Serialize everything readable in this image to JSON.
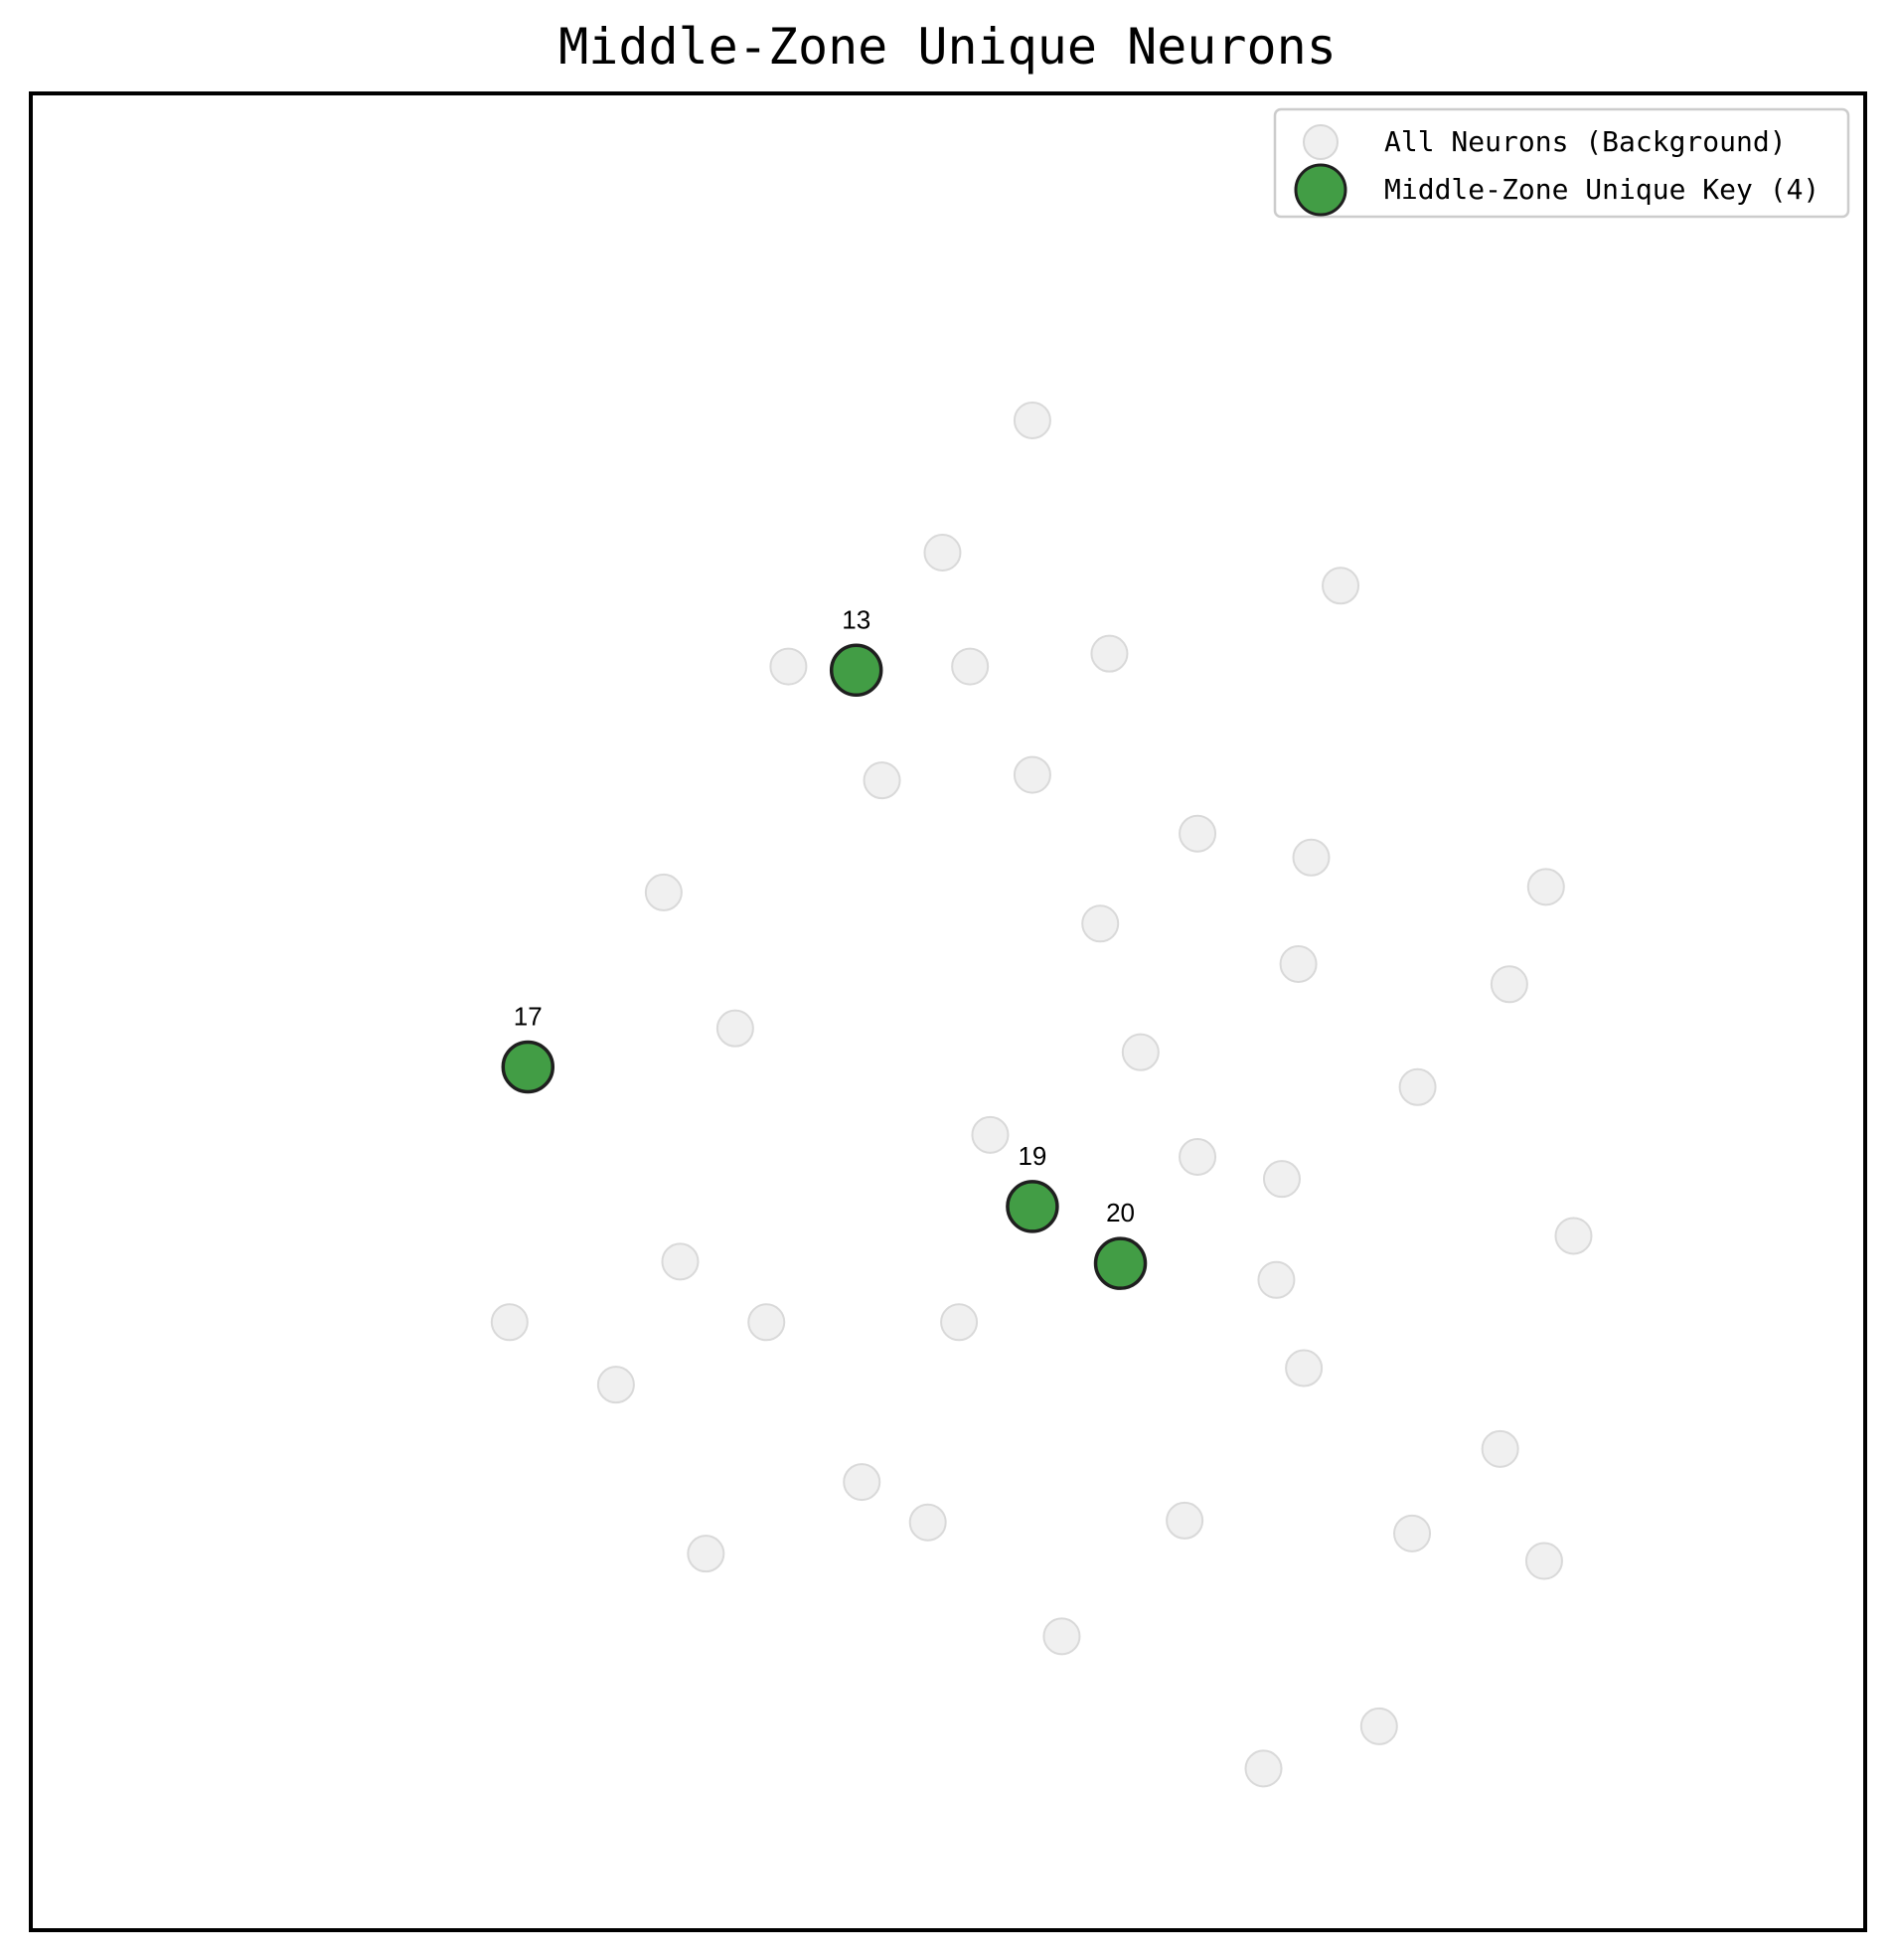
{
  "chart_data": {
    "type": "scatter",
    "title": "Middle-Zone Unique Neurons",
    "xlabel": "",
    "ylabel": "",
    "xlim": [
      0,
      100
    ],
    "ylim": [
      0,
      100
    ],
    "grid": false,
    "axis_ticks": false,
    "legend_position": "top-right",
    "series": [
      {
        "name": "All Neurons (Background)",
        "color": "#e6e6e6",
        "points": [
          {
            "x": 54.6,
            "y": 82.2
          },
          {
            "x": 49.7,
            "y": 75.0
          },
          {
            "x": 71.4,
            "y": 73.2
          },
          {
            "x": 41.3,
            "y": 68.8
          },
          {
            "x": 51.2,
            "y": 68.8
          },
          {
            "x": 58.8,
            "y": 69.5
          },
          {
            "x": 46.4,
            "y": 62.6
          },
          {
            "x": 54.6,
            "y": 62.9
          },
          {
            "x": 63.6,
            "y": 59.7
          },
          {
            "x": 69.8,
            "y": 58.4
          },
          {
            "x": 34.5,
            "y": 56.5
          },
          {
            "x": 58.3,
            "y": 54.8
          },
          {
            "x": 69.1,
            "y": 52.6
          },
          {
            "x": 82.6,
            "y": 56.8
          },
          {
            "x": 80.6,
            "y": 51.5
          },
          {
            "x": 38.4,
            "y": 49.1
          },
          {
            "x": 60.5,
            "y": 47.8
          },
          {
            "x": 75.6,
            "y": 45.9
          },
          {
            "x": 52.3,
            "y": 43.3
          },
          {
            "x": 63.6,
            "y": 42.1
          },
          {
            "x": 68.2,
            "y": 40.9
          },
          {
            "x": 84.1,
            "y": 37.8
          },
          {
            "x": 35.4,
            "y": 36.4
          },
          {
            "x": 26.1,
            "y": 33.1
          },
          {
            "x": 40.1,
            "y": 33.1
          },
          {
            "x": 50.6,
            "y": 33.1
          },
          {
            "x": 67.9,
            "y": 35.4
          },
          {
            "x": 69.4,
            "y": 30.6
          },
          {
            "x": 31.9,
            "y": 29.7
          },
          {
            "x": 45.3,
            "y": 24.4
          },
          {
            "x": 80.1,
            "y": 26.2
          },
          {
            "x": 48.9,
            "y": 22.2
          },
          {
            "x": 62.9,
            "y": 22.3
          },
          {
            "x": 75.3,
            "y": 21.6
          },
          {
            "x": 36.8,
            "y": 20.5
          },
          {
            "x": 82.5,
            "y": 20.1
          },
          {
            "x": 56.2,
            "y": 16.0
          },
          {
            "x": 73.5,
            "y": 11.1
          },
          {
            "x": 67.2,
            "y": 8.8
          }
        ]
      },
      {
        "name": "Middle-Zone Unique Key (4)",
        "color": "#2e9231",
        "points": [
          {
            "x": 45.0,
            "y": 68.6,
            "label": "13"
          },
          {
            "x": 27.1,
            "y": 47.0,
            "label": "17"
          },
          {
            "x": 54.6,
            "y": 39.4,
            "label": "19"
          },
          {
            "x": 59.4,
            "y": 36.3,
            "label": "20"
          }
        ]
      }
    ]
  }
}
